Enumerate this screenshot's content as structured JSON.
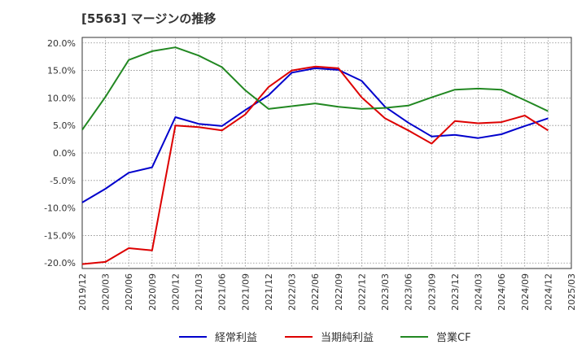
{
  "chart_data": {
    "type": "line",
    "title": "[5563]  マージンの推移",
    "xlabel": "",
    "ylabel": "",
    "x": [
      "2019/12",
      "2020/03",
      "2020/06",
      "2020/09",
      "2020/12",
      "2021/03",
      "2021/06",
      "2021/09",
      "2021/12",
      "2022/03",
      "2022/06",
      "2022/09",
      "2022/12",
      "2023/03",
      "2023/06",
      "2023/09",
      "2023/12",
      "2024/03",
      "2024/06",
      "2024/09",
      "2024/12",
      "2025/03"
    ],
    "ylim": [
      -21,
      21
    ],
    "yticks": [
      20,
      15,
      10,
      5,
      0,
      -5,
      -10,
      -15,
      -20
    ],
    "ytick_labels": [
      "20.0%",
      "15.0%",
      "10.0%",
      "5.0%",
      "0.0%",
      "-5.0%",
      "-10.0%",
      "-15.0%",
      "-20.0%"
    ],
    "grid": true,
    "legend_position": "bottom",
    "series": [
      {
        "name": "経常利益",
        "color": "#0000cc",
        "values": [
          -9.0,
          -6.5,
          -3.6,
          -2.6,
          6.5,
          5.3,
          4.9,
          7.8,
          10.5,
          14.6,
          15.4,
          15.1,
          13.1,
          8.4,
          5.5,
          3.0,
          3.3,
          2.7,
          3.4,
          4.9,
          6.3,
          null
        ]
      },
      {
        "name": "当期純利益",
        "color": "#dd0000",
        "values": [
          -20.2,
          -19.8,
          -17.3,
          -17.7,
          5.0,
          4.7,
          4.1,
          7.0,
          12.0,
          15.0,
          15.7,
          15.4,
          10.1,
          6.3,
          4.1,
          1.7,
          5.8,
          5.4,
          5.6,
          6.8,
          4.1,
          null
        ]
      },
      {
        "name": "営業CF",
        "color": "#228822",
        "values": [
          4.2,
          10.2,
          16.9,
          18.5,
          19.2,
          17.7,
          15.6,
          11.4,
          8.0,
          8.5,
          9.0,
          8.4,
          8.0,
          8.2,
          8.6,
          10.1,
          11.5,
          11.7,
          11.5,
          9.6,
          7.6,
          null
        ]
      }
    ]
  }
}
